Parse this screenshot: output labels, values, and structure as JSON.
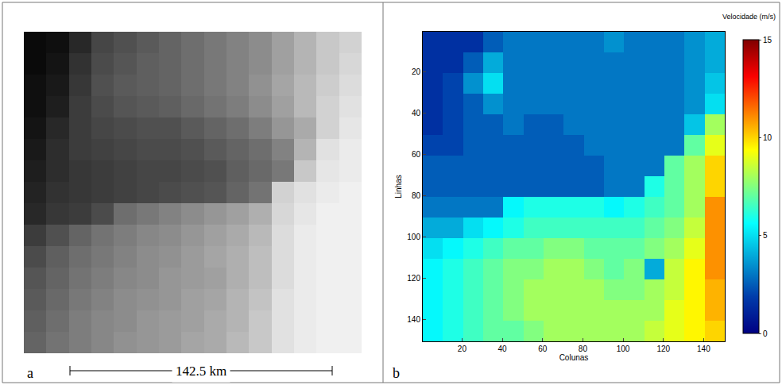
{
  "chart_data": [
    {
      "type": "heatmap",
      "tick_labels": false,
      "annotations": [
        {
          "text": "a"
        },
        {
          "text": "142.5 km"
        }
      ],
      "zlim": [
        0,
        255
      ],
      "cells": [
        [
          10,
          15,
          40,
          70,
          80,
          90,
          100,
          110,
          120,
          130,
          140,
          160,
          180,
          200,
          210
        ],
        [
          10,
          20,
          50,
          75,
          85,
          95,
          100,
          110,
          120,
          130,
          140,
          160,
          180,
          200,
          215
        ],
        [
          15,
          25,
          55,
          80,
          90,
          95,
          100,
          110,
          120,
          130,
          145,
          165,
          185,
          205,
          220
        ],
        [
          15,
          30,
          60,
          75,
          85,
          90,
          95,
          105,
          115,
          125,
          140,
          160,
          185,
          210,
          225
        ],
        [
          20,
          40,
          60,
          70,
          75,
          80,
          80,
          90,
          100,
          110,
          125,
          150,
          170,
          210,
          230
        ],
        [
          25,
          45,
          60,
          65,
          70,
          75,
          75,
          80,
          90,
          100,
          110,
          130,
          180,
          225,
          235
        ],
        [
          30,
          45,
          55,
          60,
          65,
          70,
          70,
          75,
          80,
          95,
          105,
          120,
          200,
          230,
          235
        ],
        [
          35,
          50,
          55,
          60,
          65,
          70,
          75,
          80,
          85,
          100,
          115,
          210,
          225,
          235,
          240
        ],
        [
          40,
          55,
          60,
          75,
          110,
          120,
          130,
          140,
          150,
          160,
          175,
          215,
          230,
          240,
          240
        ],
        [
          60,
          80,
          100,
          115,
          125,
          135,
          140,
          150,
          160,
          170,
          185,
          220,
          235,
          240,
          240
        ],
        [
          75,
          95,
          110,
          120,
          130,
          140,
          145,
          155,
          165,
          175,
          190,
          220,
          235,
          240,
          240
        ],
        [
          85,
          100,
          115,
          125,
          135,
          140,
          150,
          155,
          160,
          175,
          190,
          220,
          235,
          240,
          240
        ],
        [
          90,
          105,
          120,
          130,
          140,
          145,
          150,
          160,
          165,
          180,
          195,
          225,
          235,
          240,
          240
        ],
        [
          95,
          110,
          125,
          135,
          140,
          150,
          155,
          160,
          170,
          180,
          200,
          225,
          235,
          240,
          240
        ],
        [
          100,
          115,
          125,
          135,
          145,
          150,
          155,
          165,
          170,
          185,
          200,
          225,
          235,
          240,
          240
        ]
      ]
    },
    {
      "type": "heatmap",
      "x_label": "Colunas",
      "y_label": "Linhas",
      "annotations": [
        {
          "text": "b"
        }
      ],
      "colorbar_title": "Velocidade (m/s)",
      "xlim": [
        0.5,
        150.5
      ],
      "ylim": [
        150.5,
        0.5
      ],
      "xticks": [
        20,
        40,
        60,
        80,
        100,
        120,
        140
      ],
      "yticks": [
        20,
        40,
        60,
        80,
        100,
        120,
        140
      ],
      "zlim": [
        0,
        15
      ],
      "zticks": [
        0,
        5,
        10,
        15
      ],
      "x": [
        5.5,
        15.5,
        25.5,
        35.5,
        45.5,
        55.5,
        65.5,
        75.5,
        85.5,
        95.5,
        105.5,
        115.5,
        125.5,
        135.5,
        145.5
      ],
      "y": [
        5.5,
        15.5,
        25.5,
        35.5,
        45.5,
        55.5,
        65.5,
        75.5,
        85.5,
        95.5,
        105.5,
        115.5,
        125.5,
        135.5,
        145.5
      ],
      "cells": [
        [
          1.5,
          1.5,
          1.5,
          2.5,
          3,
          3,
          3,
          3,
          3,
          3.5,
          3,
          3,
          3,
          3.5,
          4
        ],
        [
          1.5,
          1.5,
          2.5,
          4,
          3,
          3,
          3,
          3,
          3,
          3,
          3,
          3,
          3,
          3.5,
          4
        ],
        [
          1.5,
          2,
          3.5,
          5,
          3,
          3,
          3,
          3,
          3,
          3,
          3,
          3,
          3,
          3.5,
          4.5
        ],
        [
          1.5,
          2,
          2.5,
          3.5,
          3,
          3,
          3,
          3,
          3,
          3,
          3,
          3,
          3,
          3.5,
          5
        ],
        [
          1.5,
          2,
          2.5,
          2.5,
          3,
          2.5,
          2.5,
          3,
          3,
          3,
          3,
          3,
          3,
          4.5,
          8
        ],
        [
          2,
          2,
          2.5,
          2.5,
          2.5,
          2.5,
          2.5,
          2.5,
          3,
          3,
          3,
          3,
          3,
          7,
          9
        ],
        [
          2.5,
          2.5,
          2.5,
          2.5,
          2.5,
          2.5,
          2.5,
          2.5,
          2.5,
          3,
          3,
          3,
          7,
          8,
          10
        ],
        [
          2.5,
          2.5,
          2.5,
          2.5,
          2.5,
          2.5,
          2.5,
          2.5,
          2.5,
          3,
          3,
          6,
          7,
          8,
          10
        ],
        [
          3,
          3,
          3,
          3,
          5.5,
          6,
          6,
          6,
          6,
          5.5,
          6,
          6.5,
          7,
          8,
          11
        ],
        [
          4,
          4,
          5,
          5.5,
          6,
          6.5,
          6.5,
          6.5,
          6.5,
          6.5,
          6.5,
          7,
          7.5,
          8.5,
          11
        ],
        [
          5,
          5.5,
          6,
          6.5,
          7,
          7,
          7.5,
          7.5,
          7,
          7,
          7,
          7.5,
          8,
          9,
          11
        ],
        [
          5.5,
          6,
          6.5,
          7,
          7.5,
          7.5,
          8,
          8,
          7.5,
          7,
          7.5,
          4,
          8.5,
          9.5,
          11
        ],
        [
          5.5,
          6,
          6.5,
          7,
          7.5,
          8,
          8,
          8,
          8,
          7.5,
          7.5,
          8,
          8.5,
          9.5,
          10.5
        ],
        [
          5.5,
          6,
          6.5,
          7,
          7.5,
          8,
          8,
          8,
          8,
          8,
          8,
          8,
          9,
          9.5,
          10.5
        ],
        [
          5.5,
          6,
          6.5,
          7,
          7,
          7.5,
          8,
          8,
          8,
          8,
          8,
          8.5,
          9,
          9.5,
          10
        ]
      ]
    }
  ]
}
